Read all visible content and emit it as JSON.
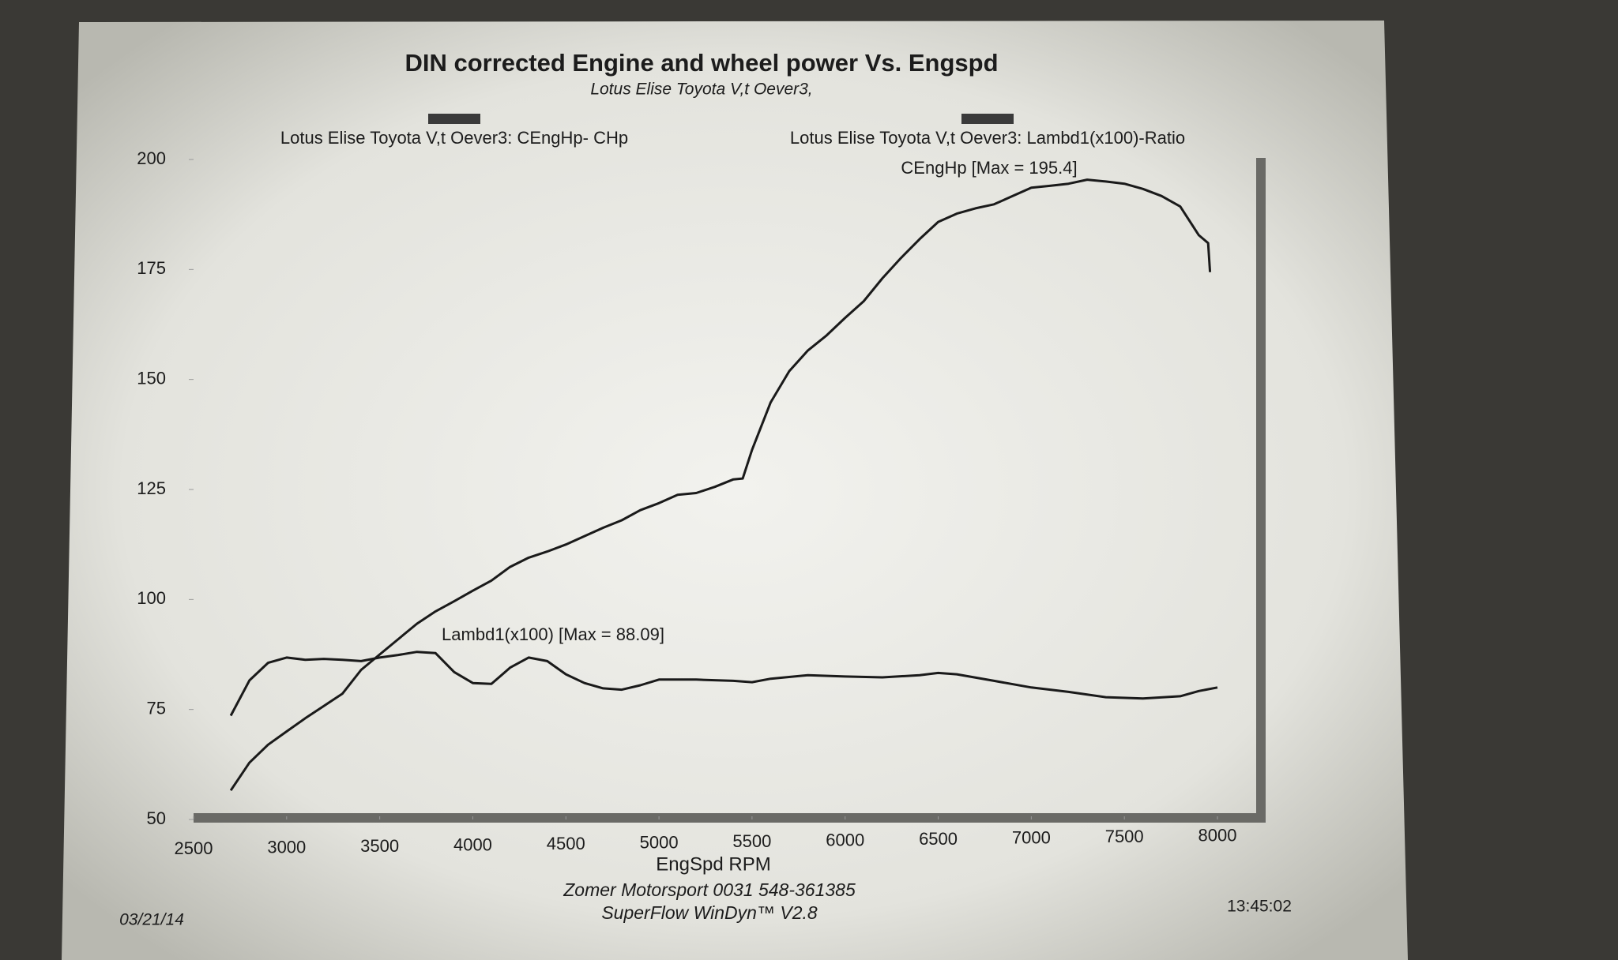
{
  "chart_data": {
    "type": "line",
    "title": "DIN corrected Engine and wheel power Vs. Engspd",
    "subtitle": "Lotus Elise Toyota V,t Oever3,",
    "xlabel": "EngSpd  RPM",
    "xlim": [
      2500,
      8000
    ],
    "xticks": [
      2500,
      3000,
      3500,
      4000,
      4500,
      5000,
      5500,
      6000,
      6500,
      7000,
      7500,
      8000
    ],
    "ylim": [
      50,
      200
    ],
    "yticks": [
      50,
      75,
      100,
      125,
      150,
      175,
      200
    ],
    "legend_color": "#3a3a3a",
    "annotations": [
      "CEngHp [Max = 195.4]",
      "Lambd1(x100) [Max = 88.09]"
    ],
    "footer": [
      "Zomer Motorsport 0031 548-361385",
      "SuperFlow WinDyn™ V2.8"
    ],
    "date": "03/21/14",
    "time": "13:45:02",
    "series": [
      {
        "name": "Lotus Elise Toyota V,t Oever3: CEngHp-  CHp",
        "color": "#1a1a1a",
        "x": [
          2700,
          2800,
          2900,
          3000,
          3100,
          3200,
          3300,
          3400,
          3500,
          3600,
          3700,
          3800,
          3900,
          4000,
          4100,
          4200,
          4300,
          4400,
          4500,
          4600,
          4700,
          4800,
          4900,
          5000,
          5100,
          5200,
          5300,
          5400,
          5450,
          5500,
          5600,
          5700,
          5800,
          5900,
          6000,
          6100,
          6200,
          6300,
          6400,
          6500,
          6600,
          6700,
          6800,
          6900,
          7000,
          7100,
          7200,
          7300,
          7400,
          7500,
          7600,
          7700,
          7800,
          7900,
          7950,
          7960
        ],
        "values": [
          56.6,
          62.9,
          67,
          70,
          73,
          75.8,
          78.6,
          84,
          87.5,
          91,
          94.5,
          97.3,
          99.6,
          102,
          104.3,
          107.4,
          109.5,
          110.9,
          112.5,
          114.4,
          116.3,
          118,
          120.3,
          121.9,
          123.8,
          124.2,
          125.6,
          127.3,
          127.5,
          134,
          144.8,
          151.9,
          156.6,
          160,
          164,
          167.8,
          173,
          177.6,
          181.9,
          185.8,
          187.7,
          188.9,
          189.8,
          191.7,
          193.6,
          194,
          194.5,
          195.4,
          195,
          194.5,
          193.3,
          191.7,
          189.3,
          182.8,
          181,
          174.4
        ]
      },
      {
        "name": "Lotus Elise Toyota V,t Oever3: Lambd1(x100)-Ratio",
        "color": "#1a1a1a",
        "x": [
          2700,
          2800,
          2900,
          3000,
          3100,
          3200,
          3300,
          3400,
          3500,
          3600,
          3700,
          3800,
          3900,
          4000,
          4100,
          4200,
          4300,
          4400,
          4500,
          4600,
          4700,
          4800,
          4900,
          5000,
          5200,
          5400,
          5500,
          5600,
          5800,
          6000,
          6200,
          6400,
          6500,
          6600,
          6800,
          7000,
          7200,
          7400,
          7600,
          7800,
          7900,
          8000
        ],
        "values": [
          73.6,
          81.6,
          85.6,
          86.8,
          86.3,
          86.5,
          86.3,
          86,
          86.8,
          87.4,
          88.09,
          87.8,
          83.5,
          81,
          80.8,
          84.5,
          86.8,
          86,
          83,
          81,
          79.8,
          79.5,
          80.5,
          81.8,
          81.8,
          81.5,
          81.2,
          82,
          82.8,
          82.5,
          82.3,
          82.8,
          83.3,
          83,
          81.5,
          80,
          79,
          77.8,
          77.5,
          78,
          79.2,
          80
        ]
      }
    ]
  }
}
